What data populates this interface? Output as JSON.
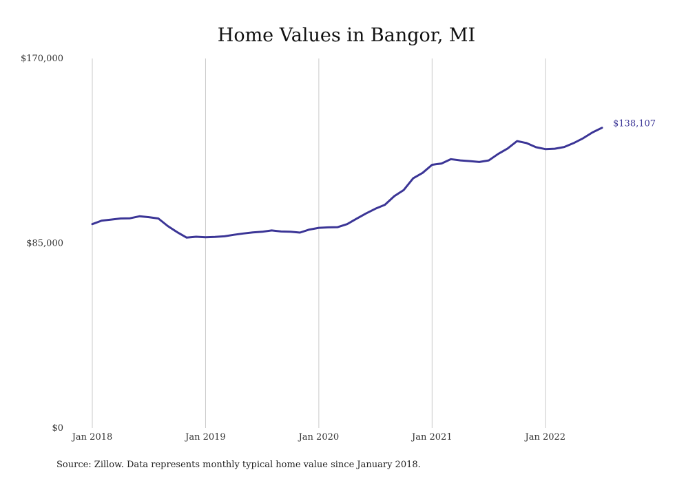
{
  "chart_data": {
    "type": "line",
    "title": "Home Values in Bangor, MI",
    "xlabel": "",
    "ylabel": "",
    "ylim": [
      0,
      170000
    ],
    "yticks": [
      {
        "value": 0,
        "label": "$0"
      },
      {
        "value": 85000,
        "label": "$85,000"
      },
      {
        "value": 170000,
        "label": "$170,000"
      }
    ],
    "xticks": [
      {
        "value": "2018-01",
        "label": "Jan 2018"
      },
      {
        "value": "2019-01",
        "label": "Jan 2019"
      },
      {
        "value": "2020-01",
        "label": "Jan 2020"
      },
      {
        "value": "2021-01",
        "label": "Jan 2021"
      },
      {
        "value": "2022-01",
        "label": "Jan 2022"
      }
    ],
    "grid": "vertical",
    "color": "#3b3596",
    "x": [
      "2018-01",
      "2018-02",
      "2018-03",
      "2018-04",
      "2018-05",
      "2018-06",
      "2018-07",
      "2018-08",
      "2018-09",
      "2018-10",
      "2018-11",
      "2018-12",
      "2019-01",
      "2019-02",
      "2019-03",
      "2019-04",
      "2019-05",
      "2019-06",
      "2019-07",
      "2019-08",
      "2019-09",
      "2019-10",
      "2019-11",
      "2019-12",
      "2020-01",
      "2020-02",
      "2020-03",
      "2020-04",
      "2020-05",
      "2020-06",
      "2020-07",
      "2020-08",
      "2020-09",
      "2020-10",
      "2020-11",
      "2020-12",
      "2021-01",
      "2021-02",
      "2021-03",
      "2021-04",
      "2021-05",
      "2021-06",
      "2021-07",
      "2021-08",
      "2021-09",
      "2021-10",
      "2021-11",
      "2021-12",
      "2022-01",
      "2022-02",
      "2022-03",
      "2022-04",
      "2022-05",
      "2022-06",
      "2022-07"
    ],
    "values": [
      93800,
      95400,
      95900,
      96400,
      96500,
      97400,
      97000,
      96400,
      92900,
      90100,
      87600,
      88000,
      87800,
      87900,
      88200,
      88900,
      89500,
      90000,
      90300,
      90900,
      90400,
      90300,
      89900,
      91300,
      92100,
      92300,
      92400,
      93800,
      96300,
      98700,
      100900,
      102700,
      106700,
      109500,
      114900,
      117400,
      121100,
      121700,
      123700,
      123100,
      122800,
      122400,
      123100,
      126100,
      128600,
      132000,
      131100,
      129200,
      128300,
      128500,
      129300,
      131100,
      133300,
      136000,
      138107
    ],
    "end_label": "$138,107",
    "source": "Source: Zillow. Data represents monthly typical home value since January 2018."
  }
}
